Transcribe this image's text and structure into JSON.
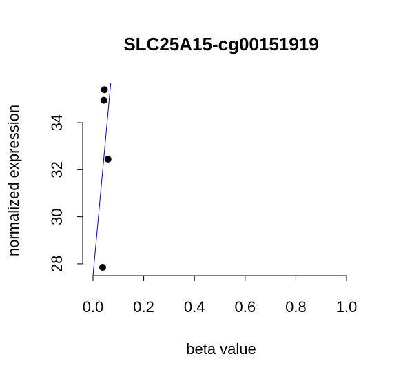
{
  "chart_data": {
    "type": "scatter",
    "title": "SLC25A15-cg00151919",
    "xlabel": "beta value",
    "ylabel": "normalized expression",
    "xlim": [
      0,
      1
    ],
    "ylim": [
      27.5,
      35.7
    ],
    "x_ticks": [
      "0.0",
      "0.2",
      "0.4",
      "0.6",
      "0.8",
      "1.0"
    ],
    "x_tick_values": [
      0,
      0.2,
      0.4,
      0.6,
      0.8,
      1.0
    ],
    "y_ticks": [
      "28",
      "30",
      "32",
      "34"
    ],
    "y_tick_values": [
      28,
      30,
      32,
      34
    ],
    "points": [
      {
        "x": 0.045,
        "y": 35.4
      },
      {
        "x": 0.043,
        "y": 34.95
      },
      {
        "x": 0.059,
        "y": 32.45
      },
      {
        "x": 0.038,
        "y": 27.85
      }
    ],
    "fit_line": {
      "x": [
        0.0,
        0.07
      ],
      "y": [
        27.5,
        35.7
      ]
    },
    "colors": {
      "points": "#000000",
      "fit_line": "#0000cc",
      "axes": "#000000"
    },
    "grid": false,
    "legend": "none"
  }
}
